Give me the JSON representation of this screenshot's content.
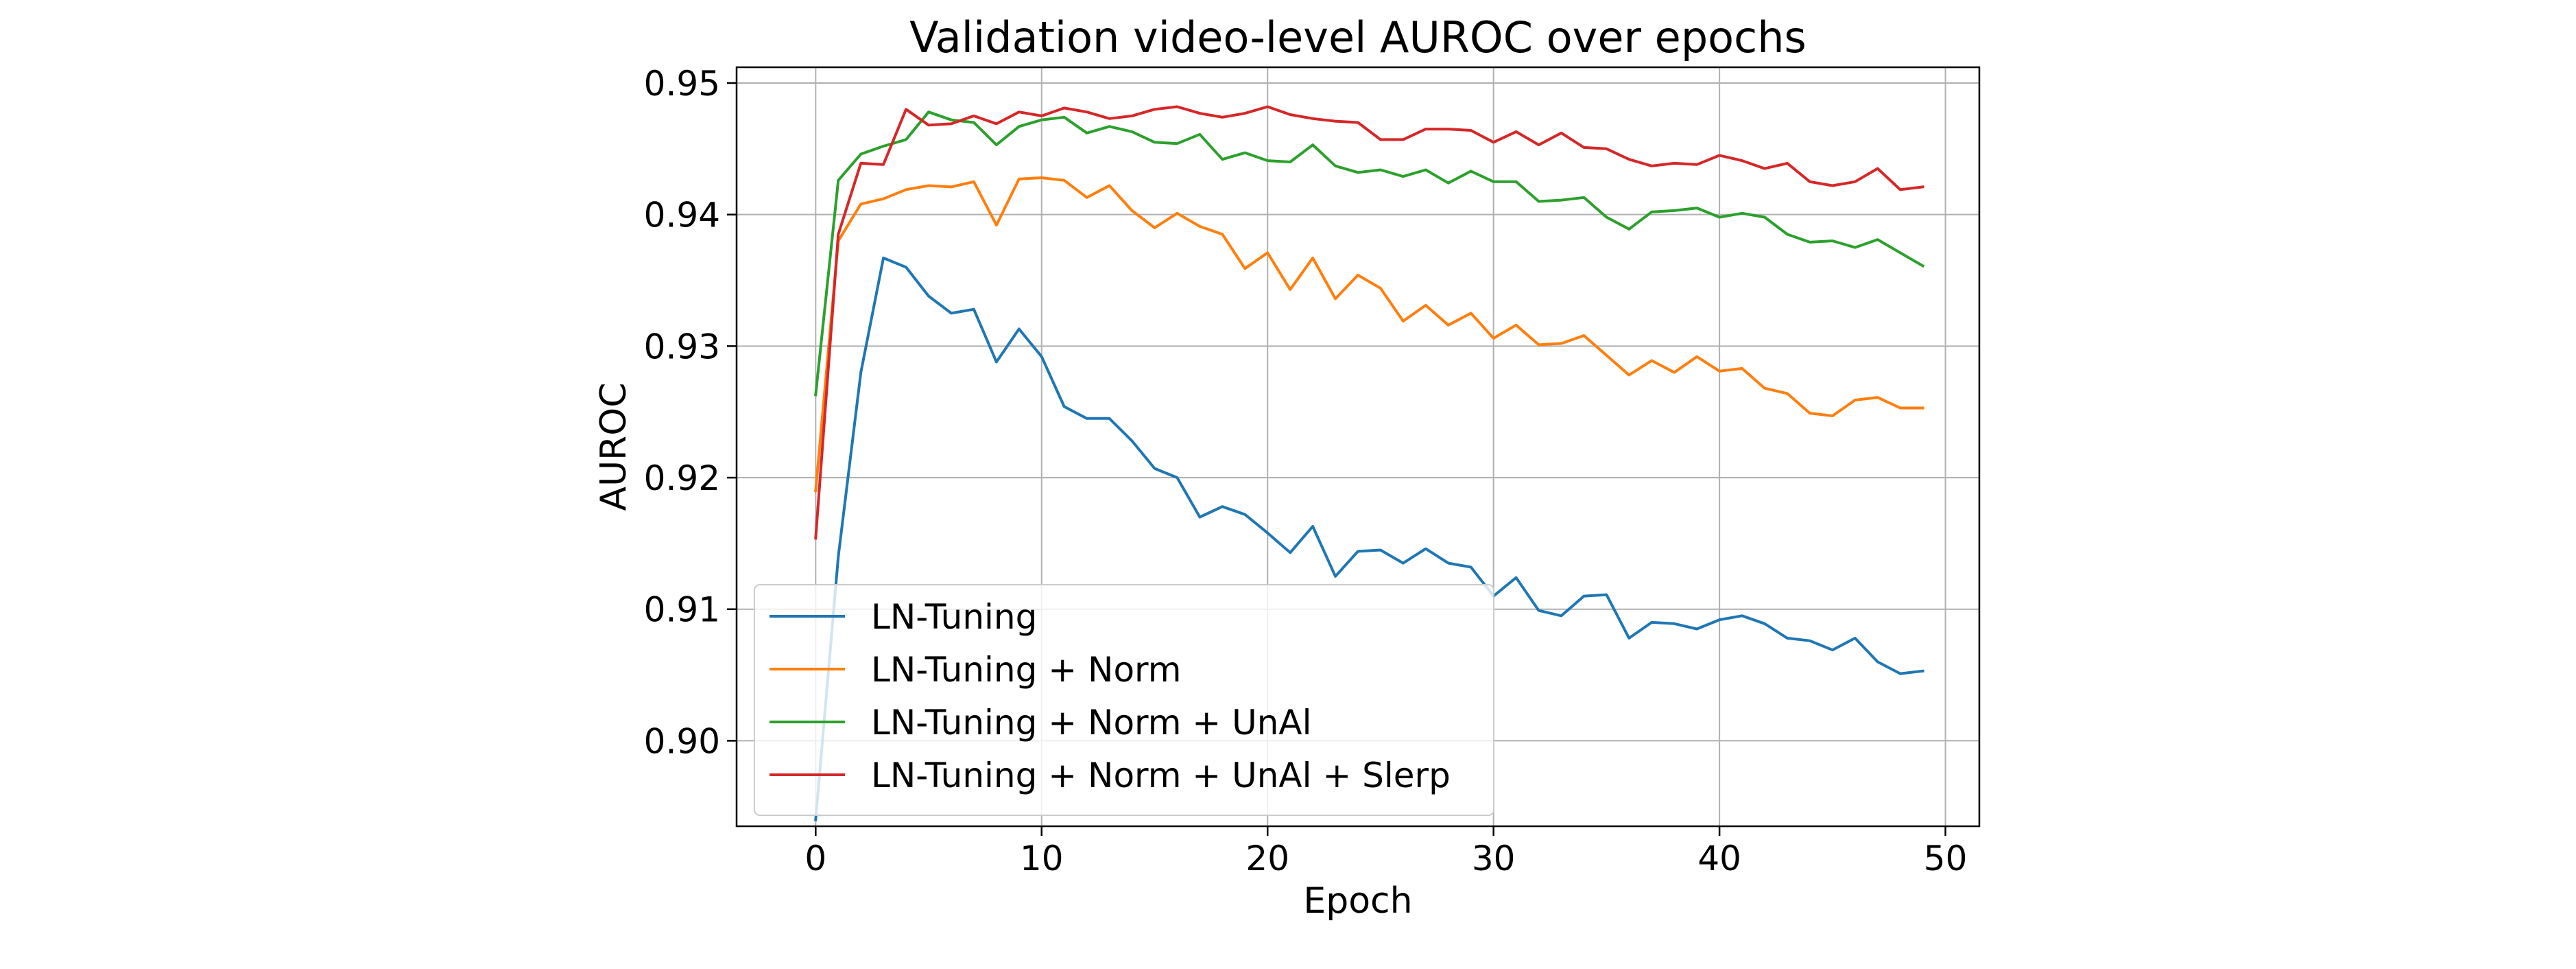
{
  "chart_data": {
    "type": "line",
    "title": "Validation video-level AUROC over epochs",
    "xlabel": "Epoch",
    "ylabel": "AUROC",
    "xlim": [
      -3.5,
      51.5
    ],
    "ylim": [
      0.8935,
      0.9512
    ],
    "xticks": [
      0,
      10,
      20,
      30,
      40,
      50
    ],
    "yticks": [
      0.9,
      0.91,
      0.92,
      0.93,
      0.94,
      0.95
    ],
    "ytick_labels": [
      "0.90",
      "0.91",
      "0.92",
      "0.93",
      "0.94",
      "0.95"
    ],
    "grid": true,
    "legend_position": "lower-left",
    "x": [
      0,
      1,
      2,
      3,
      4,
      5,
      6,
      7,
      8,
      9,
      10,
      11,
      12,
      13,
      14,
      15,
      16,
      17,
      18,
      19,
      20,
      21,
      22,
      23,
      24,
      25,
      26,
      27,
      28,
      29,
      30,
      31,
      32,
      33,
      34,
      35,
      36,
      37,
      38,
      39,
      40,
      41,
      42,
      43,
      44,
      45,
      46,
      47,
      48,
      49
    ],
    "series": [
      {
        "name": "LN-Tuning",
        "color": "#1f77b4",
        "values": [
          0.894,
          0.914,
          0.928,
          0.9367,
          0.936,
          0.9338,
          0.9325,
          0.9328,
          0.9288,
          0.9313,
          0.9292,
          0.9254,
          0.9245,
          0.9245,
          0.9228,
          0.9207,
          0.92,
          0.917,
          0.9178,
          0.9172,
          0.9158,
          0.9143,
          0.9163,
          0.9125,
          0.9144,
          0.9145,
          0.9135,
          0.9146,
          0.9135,
          0.9132,
          0.911,
          0.9124,
          0.9099,
          0.9095,
          0.911,
          0.9111,
          0.9078,
          0.909,
          0.9089,
          0.9085,
          0.9092,
          0.9095,
          0.9089,
          0.9078,
          0.9076,
          0.9069,
          0.9078,
          0.906,
          0.9051,
          0.9053
        ]
      },
      {
        "name": "LN-Tuning + Norm",
        "color": "#ff7f0e",
        "values": [
          0.919,
          0.938,
          0.9408,
          0.9412,
          0.9419,
          0.9422,
          0.9421,
          0.9425,
          0.9392,
          0.9427,
          0.9428,
          0.9426,
          0.9413,
          0.9422,
          0.9403,
          0.939,
          0.9401,
          0.9391,
          0.9385,
          0.9359,
          0.9371,
          0.9343,
          0.9367,
          0.9336,
          0.9354,
          0.9344,
          0.9319,
          0.9331,
          0.9316,
          0.9325,
          0.9306,
          0.9316,
          0.9301,
          0.9302,
          0.9308,
          0.9293,
          0.9278,
          0.9289,
          0.928,
          0.9292,
          0.9281,
          0.9283,
          0.9268,
          0.9264,
          0.9249,
          0.9247,
          0.9259,
          0.9261,
          0.9253,
          0.9253
        ]
      },
      {
        "name": "LN-Tuning + Norm + UnAl",
        "color": "#2ca02c",
        "values": [
          0.9263,
          0.9426,
          0.9446,
          0.9452,
          0.9457,
          0.9478,
          0.9472,
          0.947,
          0.9453,
          0.9467,
          0.9472,
          0.9474,
          0.9462,
          0.9467,
          0.9463,
          0.9455,
          0.9454,
          0.9461,
          0.9442,
          0.9447,
          0.9441,
          0.944,
          0.9453,
          0.9437,
          0.9432,
          0.9434,
          0.9429,
          0.9434,
          0.9424,
          0.9433,
          0.9425,
          0.9425,
          0.941,
          0.9411,
          0.9413,
          0.9398,
          0.9389,
          0.9402,
          0.9403,
          0.9405,
          0.9398,
          0.9401,
          0.9398,
          0.9385,
          0.9379,
          0.938,
          0.9375,
          0.9381,
          0.9371,
          0.9361
        ]
      },
      {
        "name": "LN-Tuning + Norm + UnAl + Slerp",
        "color": "#d62728",
        "values": [
          0.9154,
          0.9385,
          0.9439,
          0.9438,
          0.948,
          0.9468,
          0.9469,
          0.9475,
          0.9469,
          0.9478,
          0.9475,
          0.9481,
          0.9478,
          0.9473,
          0.9475,
          0.948,
          0.9482,
          0.9477,
          0.9474,
          0.9477,
          0.9482,
          0.9476,
          0.9473,
          0.9471,
          0.947,
          0.9457,
          0.9457,
          0.9465,
          0.9465,
          0.9464,
          0.9455,
          0.9463,
          0.9453,
          0.9462,
          0.9451,
          0.945,
          0.9442,
          0.9437,
          0.9439,
          0.9438,
          0.9445,
          0.9441,
          0.9435,
          0.9439,
          0.9425,
          0.9422,
          0.9425,
          0.9435,
          0.9419,
          0.9421
        ]
      }
    ]
  }
}
